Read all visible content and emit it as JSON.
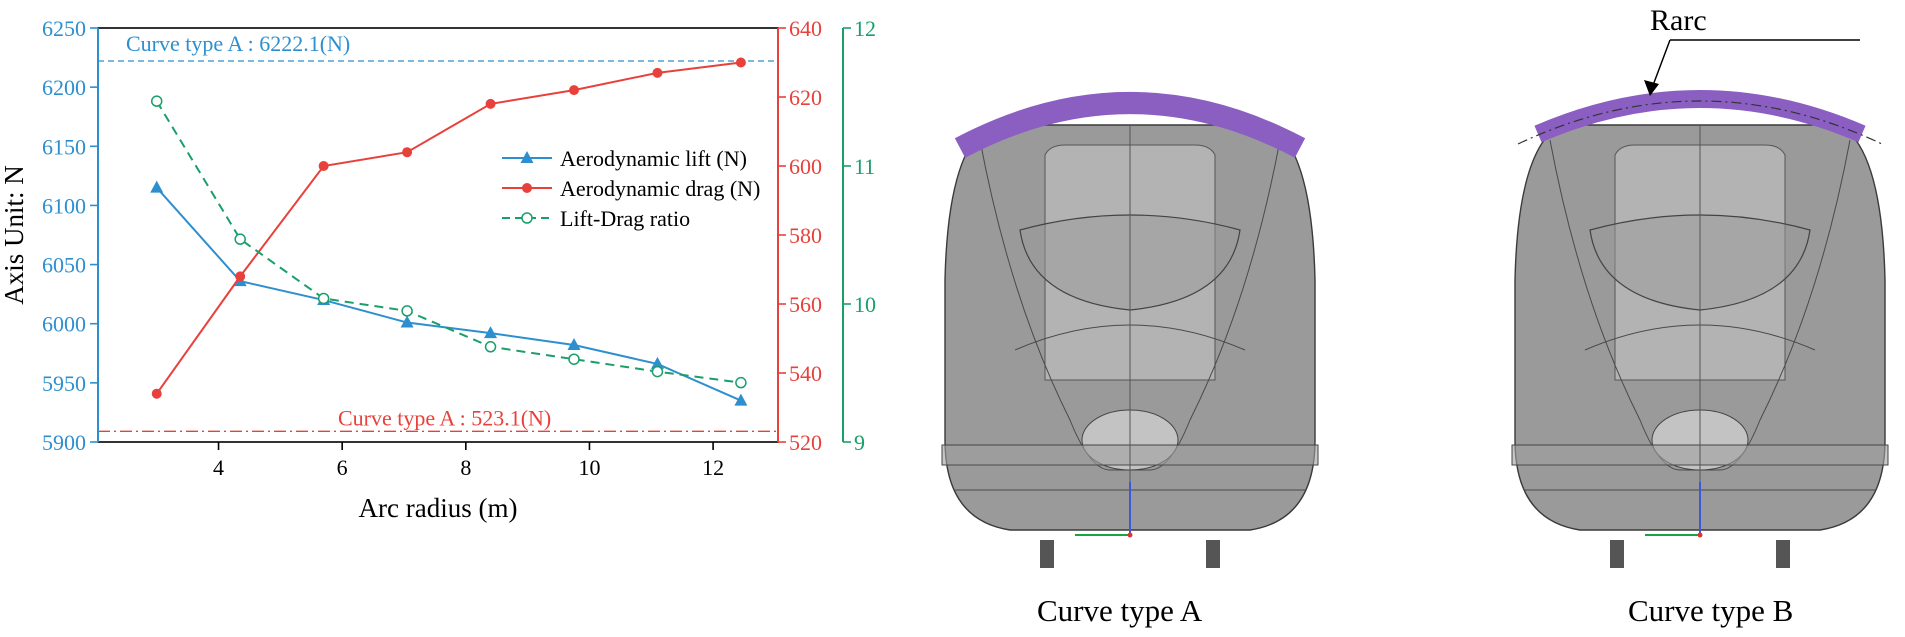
{
  "chart_data": {
    "type": "line",
    "xlabel": "Arc radius (m)",
    "ylabel": "Axis Unit: N",
    "x_ticks": [
      4,
      6,
      8,
      10,
      12
    ],
    "xlim": [
      2.05,
      13.05
    ],
    "x": [
      3.0,
      4.35,
      5.7,
      7.05,
      8.4,
      9.75,
      11.1,
      12.45
    ],
    "axes": {
      "left": {
        "range": [
          5900,
          6250
        ],
        "ticks": [
          5900,
          5950,
          6000,
          6050,
          6100,
          6150,
          6200,
          6250
        ],
        "color": "#2e8fcf"
      },
      "right1": {
        "range": [
          520,
          640
        ],
        "ticks": [
          520,
          540,
          560,
          580,
          600,
          620,
          640
        ],
        "color": "#e8413b"
      },
      "right2": {
        "range": [
          9,
          12
        ],
        "ticks": [
          9,
          10,
          11,
          12
        ],
        "color": "#1a9e6a"
      }
    },
    "series": [
      {
        "name": "Aerodynamic lift (N)",
        "axis": "left",
        "color": "#2e8fcf",
        "marker": "triangle",
        "dash": "solid",
        "values": [
          6115,
          6036,
          6020,
          6001,
          5992,
          5982,
          5966,
          5935
        ]
      },
      {
        "name": "Aerodynamic drag (N)",
        "axis": "right1",
        "color": "#e8413b",
        "marker": "circle",
        "dash": "solid",
        "values": [
          534,
          568,
          600,
          604,
          618,
          622,
          627,
          630
        ]
      },
      {
        "name": "Lift-Drag ratio",
        "axis": "right2",
        "color": "#1a9e6a",
        "marker": "open-circle",
        "dash": "dashed",
        "values": [
          11.47,
          10.47,
          10.04,
          9.95,
          9.69,
          9.6,
          9.51,
          9.43
        ]
      }
    ],
    "reference_lines": [
      {
        "label": "Curve type A : 6222.1(N)",
        "axis": "left",
        "value": 6222.1,
        "color": "#2e8fcf",
        "style": "dashed"
      },
      {
        "label": "Curve type A : 523.1(N)",
        "axis": "right1",
        "value": 523.1,
        "color": "#e8413b",
        "style": "dashdot"
      }
    ],
    "legend_position": "center-right"
  },
  "panels": {
    "left_caption": "Curve type A",
    "right_caption": "Curve type B",
    "arc_label": "Rarc"
  },
  "colors": {
    "arc_purple": "#8b5fc2",
    "body_gray": "#8c8c8c"
  }
}
